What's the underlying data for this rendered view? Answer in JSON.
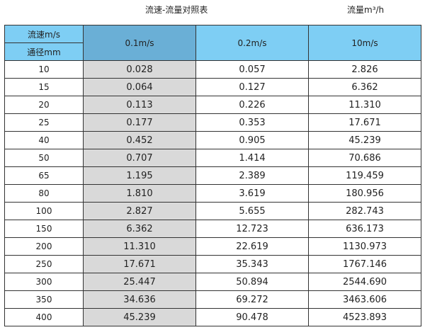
{
  "title": "流速-流量对照表",
  "unit_label": "流量m³/h",
  "header": {
    "velocity_label": "流速m/s",
    "diameter_label": "通径mm",
    "columns": [
      "0.1m/s",
      "0.2m/s",
      "10m/s"
    ]
  },
  "colors": {
    "header": "#7ecef4",
    "header_highlight": "#6aafd6",
    "highlight_column": "#d9d9d9"
  },
  "rows": [
    [
      "10",
      "0.028",
      "0.057",
      "2.826"
    ],
    [
      "15",
      "0.064",
      "0.127",
      "6.362"
    ],
    [
      "20",
      "0.113",
      "0.226",
      "11.310"
    ],
    [
      "25",
      "0.177",
      "0.353",
      "17.671"
    ],
    [
      "40",
      "0.452",
      "0.905",
      "45.239"
    ],
    [
      "50",
      "0.707",
      "1.414",
      "70.686"
    ],
    [
      "65",
      "1.195",
      "2.389",
      "119.459"
    ],
    [
      "80",
      "1.810",
      "3.619",
      "180.956"
    ],
    [
      "100",
      "2.827",
      "5.655",
      "282.743"
    ],
    [
      "150",
      "6.362",
      "12.723",
      "636.173"
    ],
    [
      "200",
      "11.310",
      "22.619",
      "1130.973"
    ],
    [
      "250",
      "17.671",
      "35.343",
      "1767.146"
    ],
    [
      "300",
      "25.447",
      "50.894",
      "2544.690"
    ],
    [
      "350",
      "34.636",
      "69.272",
      "3463.606"
    ],
    [
      "400",
      "45.239",
      "90.478",
      "4523.893"
    ]
  ]
}
